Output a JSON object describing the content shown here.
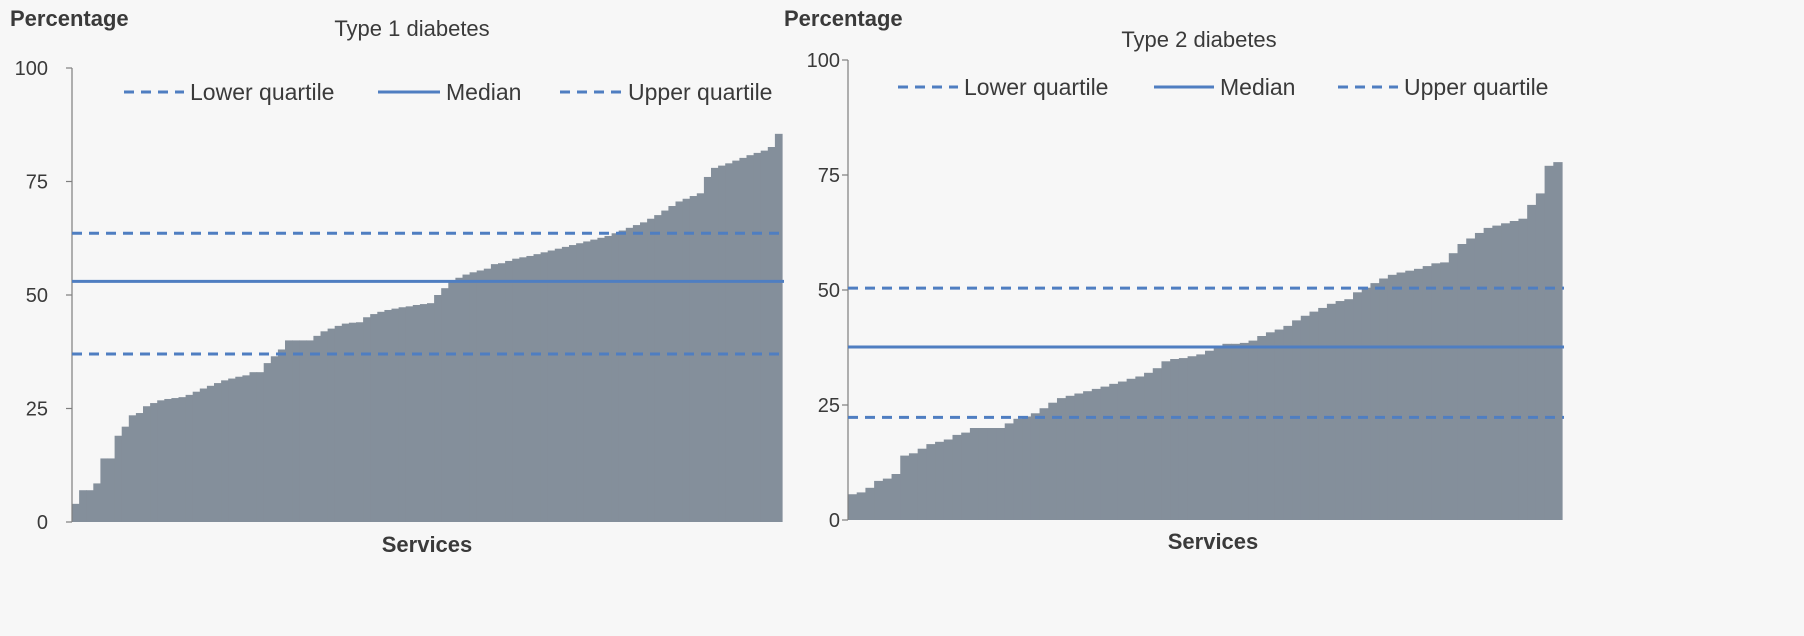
{
  "colors": {
    "bar": "#848f9b",
    "line": "#4f7ec1",
    "axis": "#7f7f7f",
    "text": "#3a3a3a",
    "background": "#f7f7f7"
  },
  "chart_data": [
    {
      "type": "area",
      "title": "Type 1 diabetes",
      "ylabel": "Percentage",
      "xlabel": "Services",
      "ylim": [
        0,
        100
      ],
      "yticks": [
        "0",
        "25",
        "50",
        "75",
        "100"
      ],
      "legend": [
        {
          "name": "Lower quartile",
          "style": "dashed"
        },
        {
          "name": "Median",
          "style": "solid"
        },
        {
          "name": "Upper quartile",
          "style": "dashed"
        }
      ],
      "legend_position": "top",
      "reference_lines": {
        "lower_quartile": 37,
        "median": 53,
        "upper_quartile": 63.6
      },
      "values": [
        4,
        7,
        7,
        8.5,
        14,
        14,
        19,
        21,
        23.5,
        24,
        25.5,
        26.2,
        26.8,
        27.1,
        27.3,
        27.5,
        28,
        28.7,
        29.4,
        30,
        30.6,
        31.2,
        31.6,
        32,
        32.3,
        33,
        33,
        35,
        36.5,
        38,
        40,
        40,
        40,
        40,
        41,
        42,
        42.6,
        43.2,
        43.7,
        43.9,
        44,
        45.1,
        45.8,
        46.3,
        46.7,
        47,
        47.3,
        47.5,
        47.8,
        48,
        48.2,
        50,
        51.5,
        53,
        53.8,
        54.5,
        55,
        55.4,
        55.8,
        56.8,
        57,
        57.5,
        58,
        58.3,
        58.6,
        59,
        59.4,
        59.8,
        60.2,
        60.6,
        61,
        61.4,
        61.8,
        62.2,
        62.6,
        63,
        63.6,
        64.2,
        64.8,
        65.4,
        66,
        66.8,
        67.6,
        68.6,
        69.6,
        70.6,
        71.2,
        71.8,
        72.4,
        76,
        78,
        78.5,
        79,
        79.6,
        80.2,
        80.8,
        81.3,
        81.8,
        82.6,
        85.5
      ]
    },
    {
      "type": "area",
      "title": "Type 2 diabetes",
      "ylabel": "Percentage",
      "xlabel": "Services",
      "ylim": [
        0,
        100
      ],
      "yticks": [
        "0",
        "25",
        "50",
        "75",
        "100"
      ],
      "legend": [
        {
          "name": "Lower quartile",
          "style": "dashed"
        },
        {
          "name": "Median",
          "style": "solid"
        },
        {
          "name": "Upper quartile",
          "style": "dashed"
        }
      ],
      "legend_position": "top",
      "reference_lines": {
        "lower_quartile": 22.3,
        "median": 37.6,
        "upper_quartile": 50.4
      },
      "values": [
        5.6,
        6,
        7,
        8.5,
        9,
        10,
        14,
        14.5,
        15.5,
        16.5,
        17,
        17.5,
        18.5,
        19,
        20,
        20,
        20,
        20,
        21,
        22,
        22.5,
        23.2,
        24.3,
        25.5,
        26.5,
        27,
        27.5,
        28,
        28.5,
        29,
        29.6,
        30.1,
        30.7,
        31.2,
        32,
        33,
        34.5,
        35,
        35.2,
        35.6,
        36,
        36.8,
        37.8,
        38.3,
        38.3,
        38.5,
        39,
        40,
        40.8,
        41.4,
        42.2,
        43.4,
        44.4,
        45.3,
        46.1,
        47,
        47.6,
        48,
        49.5,
        50.5,
        51.5,
        52.5,
        53.3,
        53.8,
        54.2,
        54.6,
        55.2,
        55.8,
        56,
        58,
        60,
        61.2,
        62.4,
        63.5,
        64,
        64.5,
        65,
        65.5,
        68.5,
        71,
        77,
        77.8
      ]
    }
  ]
}
